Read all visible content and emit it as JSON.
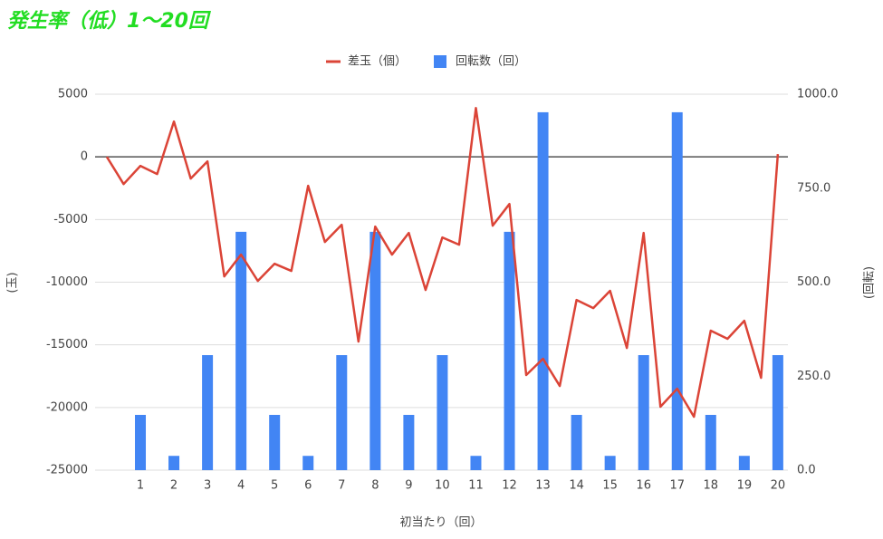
{
  "chart_data": {
    "type": "combo",
    "title": "発生率（低）1〜20回",
    "x_label": "初当たり（回）",
    "y_label": "(玉)",
    "y2_label": "(回転)",
    "xlim": [
      -0.35,
      20.3
    ],
    "xticks": [
      1,
      2,
      3,
      4,
      5,
      6,
      7,
      8,
      9,
      10,
      11,
      12,
      13,
      14,
      15,
      16,
      17,
      18,
      19,
      20
    ],
    "ylim": [
      -25000,
      5000
    ],
    "yticks": [
      5000,
      0,
      -5000,
      -10000,
      -15000,
      -20000,
      -25000
    ],
    "y2lim": [
      0,
      1000
    ],
    "y2ticks": [
      {
        "value": 1000,
        "label": "1000.0"
      },
      {
        "value": 750,
        "label": "750.0"
      },
      {
        "value": 500,
        "label": "500.0"
      },
      {
        "value": 250,
        "label": "250.0"
      },
      {
        "value": 0,
        "label": "0.0"
      }
    ],
    "grid": true,
    "legend": "top",
    "series": [
      {
        "name": "差玉（個）",
        "type": "line",
        "color": "#db4437",
        "x": [
          0,
          0.5,
          1,
          1.5,
          2,
          2.5,
          3,
          3.5,
          4,
          4.5,
          5,
          5.5,
          6,
          6.5,
          7,
          7.5,
          8,
          8.5,
          9,
          9.5,
          10,
          10.5,
          11,
          11.5,
          12,
          12.5,
          13,
          13.5,
          14,
          14.5,
          15,
          15.5,
          16,
          16.5,
          17,
          17.5,
          18,
          18.5,
          19,
          19.5,
          20
        ],
        "values": [
          0,
          -2170,
          -720,
          -1370,
          2820,
          -1730,
          -360,
          -9540,
          -7800,
          -9900,
          -8530,
          -9100,
          -2310,
          -6790,
          -5420,
          -14740,
          -5560,
          -7800,
          -6070,
          -10620,
          -6430,
          -7010,
          3900,
          -5490,
          -3760,
          -17410,
          -16110,
          -18280,
          -11420,
          -12070,
          -10690,
          -15250,
          -6070,
          -19940,
          -18500,
          -20740,
          -13870,
          -14520,
          -13080,
          -17630,
          220
        ]
      },
      {
        "name": "回転数（回）",
        "type": "bar",
        "axis": "y2",
        "color": "#4285f4",
        "x": [
          1,
          2,
          3,
          4,
          5,
          6,
          7,
          8,
          9,
          10,
          11,
          12,
          13,
          14,
          15,
          16,
          17,
          18,
          19,
          20
        ],
        "values": [
          147,
          38,
          306,
          634,
          147,
          38,
          306,
          634,
          147,
          306,
          38,
          634,
          952,
          147,
          38,
          306,
          952,
          147,
          38,
          306
        ]
      }
    ]
  }
}
